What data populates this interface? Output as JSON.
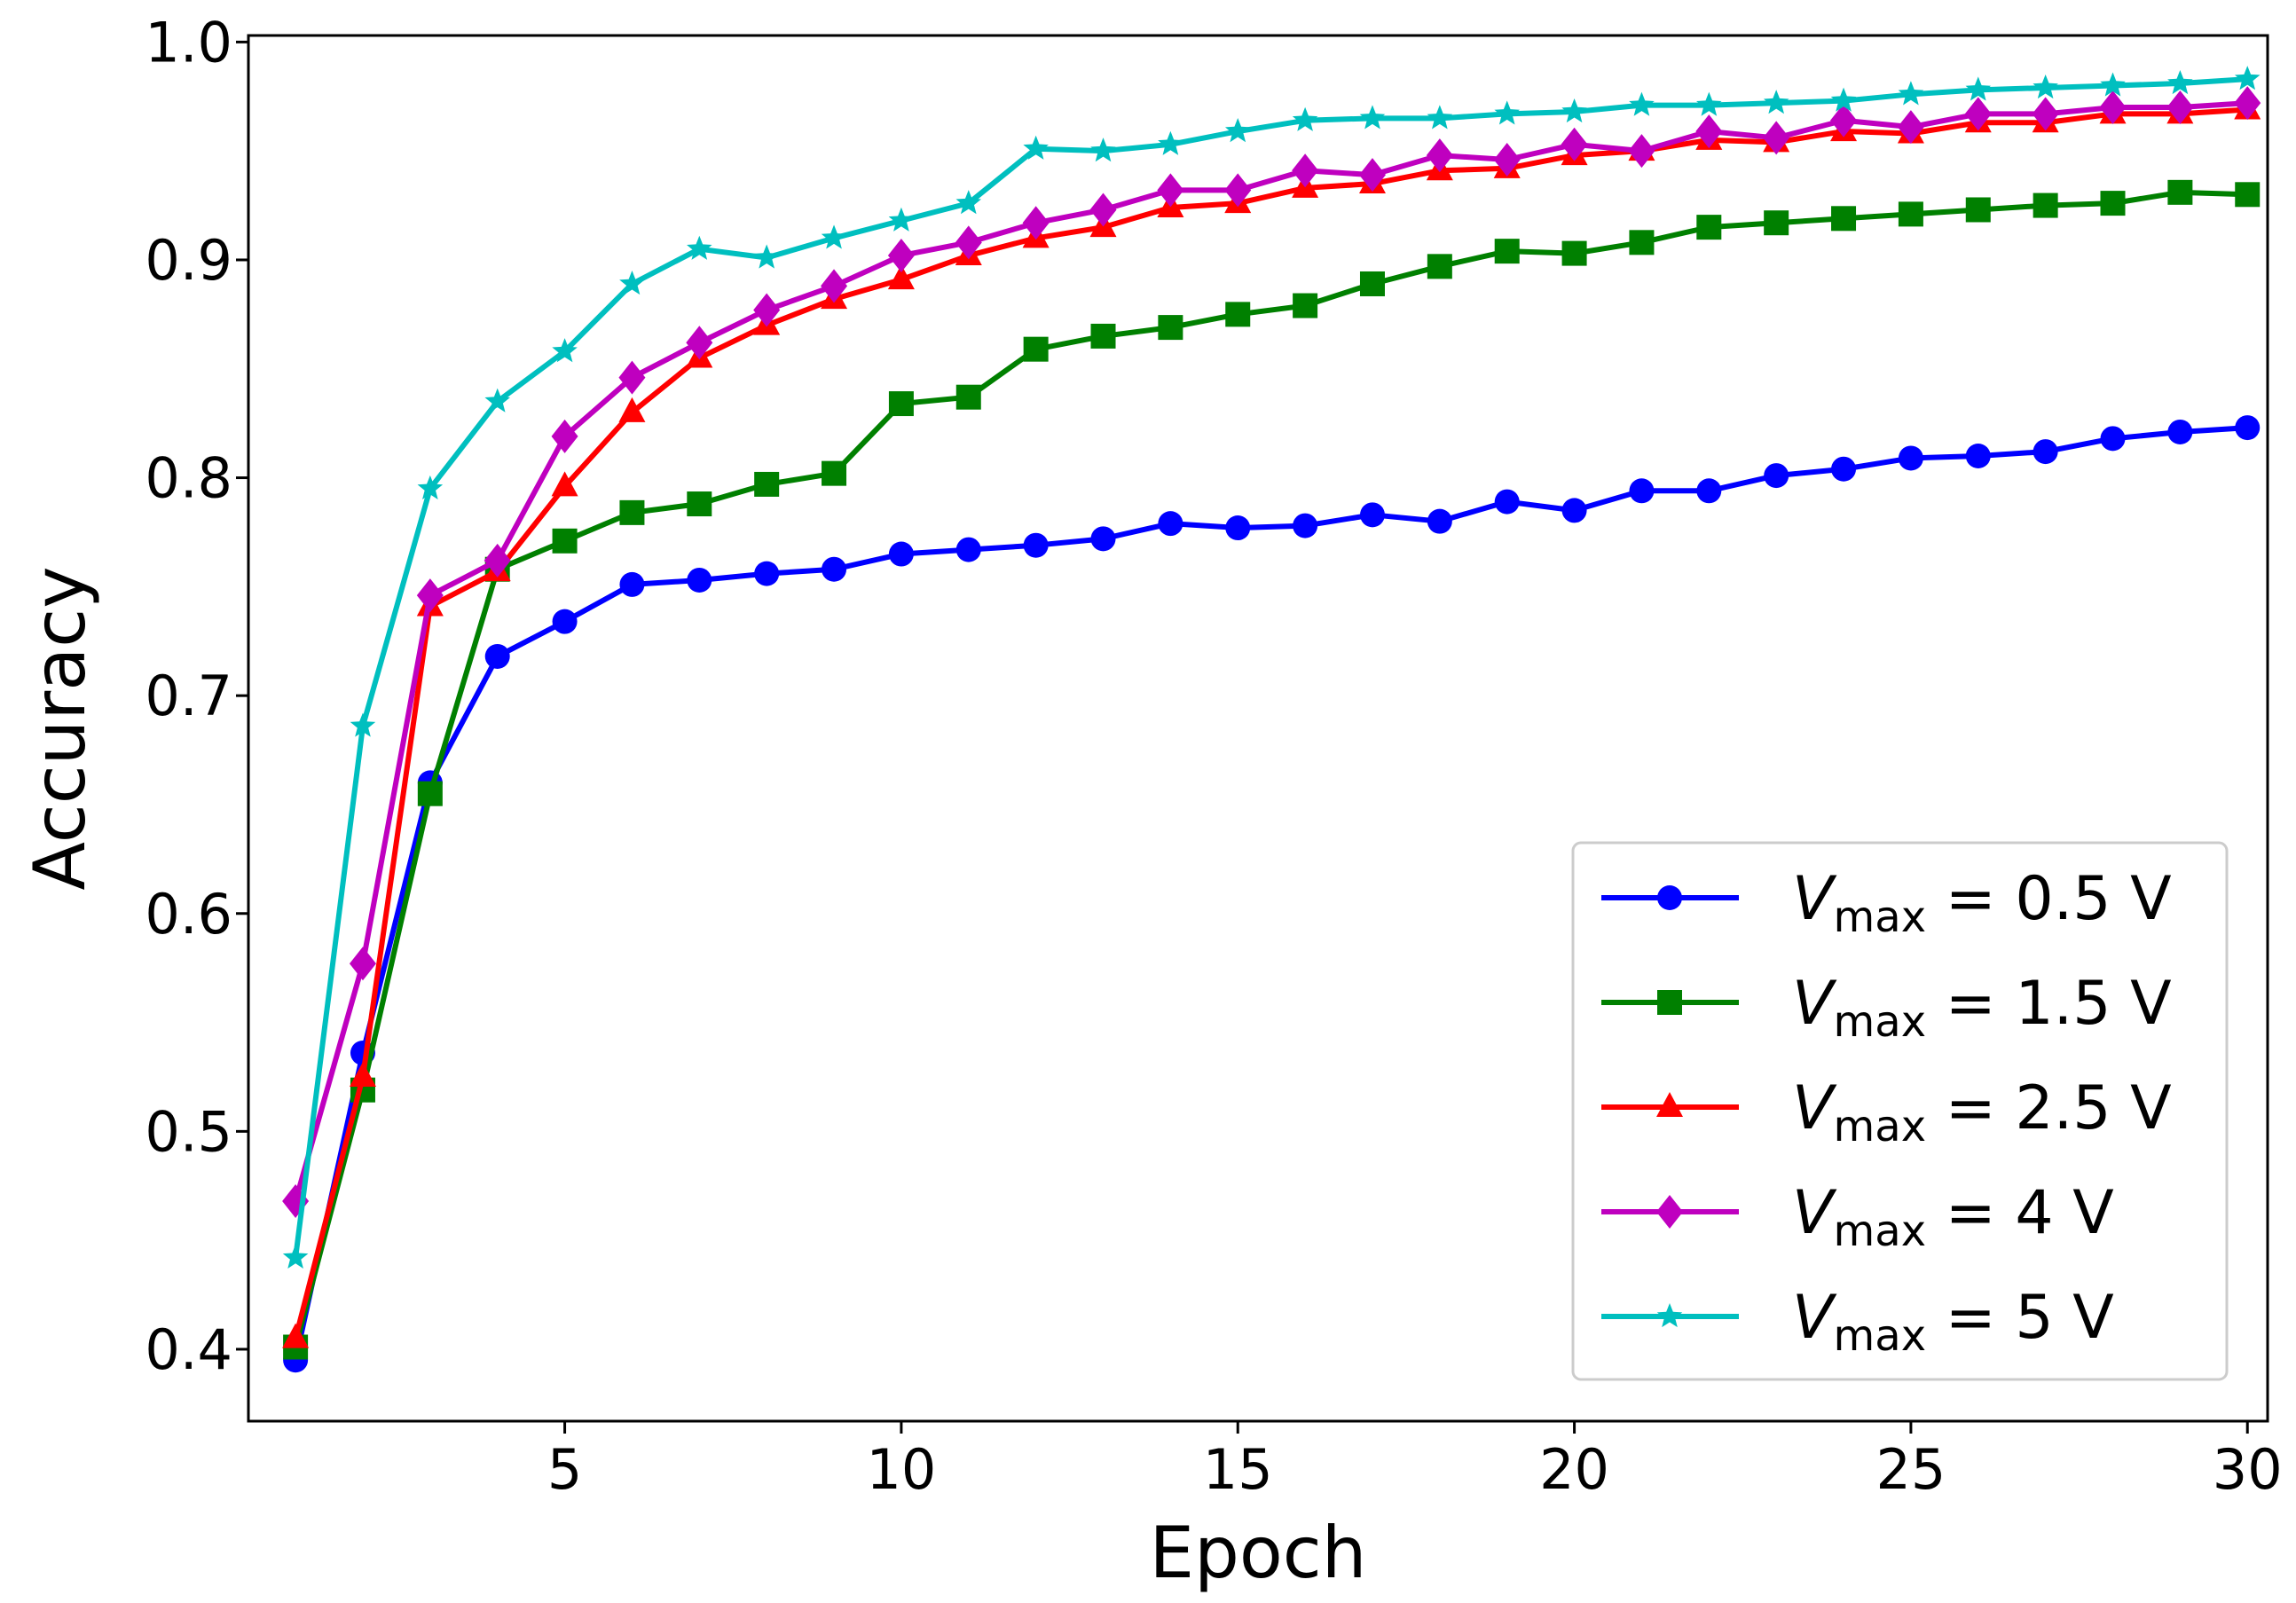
{
  "chart_data": {
    "type": "line",
    "title": "",
    "xlabel": "Epoch",
    "ylabel": "Accuracy",
    "xlim": [
      0.3,
      30.3
    ],
    "ylim": [
      0.367,
      1.003
    ],
    "xticks": [
      5,
      10,
      15,
      20,
      25,
      30
    ],
    "yticks": [
      0.4,
      0.5,
      0.6,
      0.7,
      0.8,
      0.9,
      1.0
    ],
    "ytick_labels": [
      "0.4",
      "0.5",
      "0.6",
      "0.7",
      "0.8",
      "0.9",
      "1.0"
    ],
    "grid": false,
    "legend_position": "lower-right",
    "x": [
      1,
      2,
      3,
      4,
      5,
      6,
      7,
      8,
      9,
      10,
      11,
      12,
      13,
      14,
      15,
      16,
      17,
      18,
      19,
      20,
      21,
      22,
      23,
      24,
      25,
      26,
      27,
      28,
      29,
      30
    ],
    "series": [
      {
        "name": "V_max = 0.5 V",
        "legend": {
          "symbol": "V",
          "subscript": "max",
          "rest": " = 0.5 V"
        },
        "color": "#0000ff",
        "marker": "circle",
        "values": [
          0.395,
          0.536,
          0.66,
          0.718,
          0.734,
          0.751,
          0.753,
          0.756,
          0.758,
          0.765,
          0.767,
          0.769,
          0.772,
          0.779,
          0.777,
          0.778,
          0.783,
          0.78,
          0.789,
          0.785,
          0.794,
          0.794,
          0.801,
          0.804,
          0.809,
          0.81,
          0.812,
          0.818,
          0.821,
          0.823
        ]
      },
      {
        "name": "V_max = 1.5 V",
        "legend": {
          "symbol": "V",
          "subscript": "max",
          "rest": " = 1.5 V"
        },
        "color": "#008000",
        "marker": "square",
        "values": [
          0.401,
          0.519,
          0.655,
          0.758,
          0.771,
          0.784,
          0.788,
          0.797,
          0.802,
          0.834,
          0.837,
          0.859,
          0.865,
          0.869,
          0.875,
          0.879,
          0.889,
          0.897,
          0.904,
          0.903,
          0.908,
          0.915,
          0.917,
          0.919,
          0.921,
          0.923,
          0.925,
          0.926,
          0.931,
          0.93
        ]
      },
      {
        "name": "V_max = 2.5 V",
        "legend": {
          "symbol": "V",
          "subscript": "max",
          "rest": " = 2.5 V"
        },
        "color": "#ff0000",
        "marker": "triangle",
        "values": [
          0.405,
          0.525,
          0.741,
          0.757,
          0.796,
          0.83,
          0.855,
          0.87,
          0.882,
          0.891,
          0.902,
          0.91,
          0.915,
          0.924,
          0.926,
          0.933,
          0.935,
          0.941,
          0.942,
          0.948,
          0.95,
          0.955,
          0.954,
          0.959,
          0.958,
          0.963,
          0.963,
          0.967,
          0.967,
          0.969
        ]
      },
      {
        "name": "V_max = 4 V",
        "legend": {
          "symbol": "V",
          "subscript": "max",
          "rest": " = 4 V"
        },
        "color": "#bf00bf",
        "marker": "diamond",
        "values": [
          0.468,
          0.577,
          0.746,
          0.762,
          0.819,
          0.846,
          0.862,
          0.877,
          0.888,
          0.902,
          0.908,
          0.917,
          0.923,
          0.932,
          0.932,
          0.941,
          0.939,
          0.948,
          0.946,
          0.953,
          0.95,
          0.959,
          0.956,
          0.964,
          0.961,
          0.967,
          0.967,
          0.97,
          0.97,
          0.972
        ]
      },
      {
        "name": "V_max = 5 V",
        "legend": {
          "symbol": "V",
          "subscript": "max",
          "rest": " = 5 V"
        },
        "color": "#00bfbf",
        "marker": "star",
        "values": [
          0.442,
          0.686,
          0.795,
          0.835,
          0.858,
          0.889,
          0.905,
          0.901,
          0.91,
          0.918,
          0.926,
          0.951,
          0.95,
          0.953,
          0.959,
          0.964,
          0.965,
          0.965,
          0.967,
          0.968,
          0.971,
          0.971,
          0.972,
          0.973,
          0.976,
          0.978,
          0.979,
          0.98,
          0.981,
          0.983
        ]
      }
    ]
  }
}
